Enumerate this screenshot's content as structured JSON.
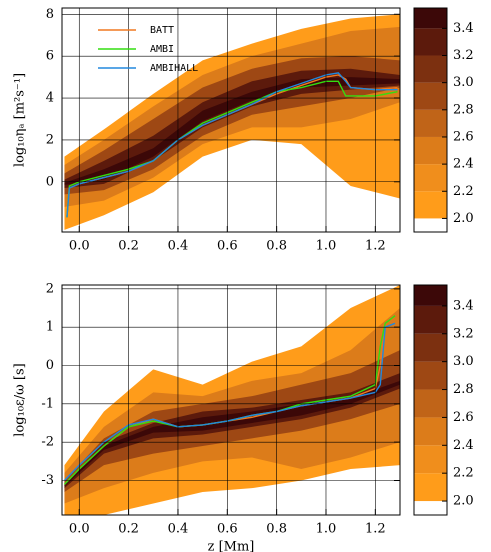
{
  "chart_data": [
    {
      "type": "contour-line",
      "ylabel": "log₁₀ηₐ [m²s⁻¹]",
      "xlim": [
        -0.07,
        1.3
      ],
      "xticks": [
        {
          "value": 0,
          "label": "0.0"
        },
        {
          "value": 0.2,
          "label": "0.2"
        },
        {
          "value": 0.4,
          "label": "0.4"
        },
        {
          "value": 0.6,
          "label": "0.6"
        },
        {
          "value": 0.8,
          "label": "0.8"
        },
        {
          "value": 1.0,
          "label": "1.0"
        },
        {
          "value": 1.2,
          "label": "1.2"
        }
      ],
      "ylim": [
        -2.4,
        8.3
      ],
      "yticks": [
        0,
        2,
        4,
        6,
        8
      ],
      "grid": true,
      "legend": "upper left",
      "contour_x": [
        -0.06,
        0.1,
        0.3,
        0.5,
        0.7,
        0.9,
        1.1,
        1.3
      ],
      "contours": [
        {
          "level": 2.0,
          "lower": [
            -2.3,
            -1.6,
            -0.5,
            1.2,
            2.0,
            1.8,
            -0.2,
            -0.8
          ],
          "upper": [
            1.2,
            2.5,
            4.2,
            5.8,
            6.6,
            7.3,
            7.8,
            8.0
          ]
        },
        {
          "level": 2.4,
          "lower": [
            -1.2,
            -0.9,
            0.2,
            1.8,
            2.6,
            2.6,
            3.0,
            3.8
          ],
          "upper": [
            0.8,
            2.0,
            3.6,
            5.1,
            6.0,
            6.6,
            7.2,
            7.4
          ]
        },
        {
          "level": 2.8,
          "lower": [
            -0.6,
            -0.4,
            0.6,
            2.2,
            3.2,
            3.6,
            4.0,
            4.5
          ],
          "upper": [
            0.4,
            1.5,
            3.0,
            4.5,
            5.4,
            5.9,
            6.0,
            5.8
          ]
        },
        {
          "level": 3.2,
          "lower": [
            -0.3,
            -0.1,
            1.0,
            2.6,
            3.6,
            4.2,
            4.4,
            4.6
          ],
          "upper": [
            0.1,
            1.0,
            2.2,
            3.8,
            4.8,
            5.3,
            5.4,
            5.1
          ]
        },
        {
          "level": 3.4,
          "lower": [
            -0.15,
            0.1,
            1.2,
            2.9,
            3.9,
            4.5,
            4.6,
            4.7
          ],
          "upper": [
            -0.05,
            0.6,
            1.6,
            3.4,
            4.3,
            4.9,
            5.0,
            4.9
          ]
        }
      ],
      "x": [
        -0.05,
        -0.04,
        0,
        0.1,
        0.2,
        0.3,
        0.4,
        0.5,
        0.6,
        0.7,
        0.8,
        0.9,
        1.0,
        1.05,
        1.08,
        1.1,
        1.2,
        1.29
      ],
      "series": [
        {
          "name": "BATT",
          "color": "#f07820",
          "values": [
            -1.7,
            -0.3,
            -0.1,
            0.2,
            0.5,
            1.0,
            2.0,
            2.7,
            3.2,
            3.7,
            4.2,
            4.6,
            5.0,
            5.1,
            4.9,
            4.5,
            4.4,
            4.5
          ]
        },
        {
          "name": "AMBI",
          "color": "#33dd11",
          "values": [
            -1.7,
            -0.2,
            0,
            0.3,
            0.6,
            1.0,
            2.0,
            2.8,
            3.3,
            3.8,
            4.3,
            4.5,
            4.8,
            4.8,
            4.1,
            4.1,
            4.1,
            4.3
          ]
        },
        {
          "name": "AMBIHALL",
          "color": "#2288dd",
          "values": [
            -1.7,
            -0.3,
            -0.1,
            0.2,
            0.5,
            1.0,
            2.0,
            2.7,
            3.2,
            3.7,
            4.3,
            4.7,
            5.1,
            5.2,
            4.8,
            4.5,
            4.4,
            4.4
          ]
        }
      ],
      "colorbar": {
        "bounds": [
          1.9,
          2.0,
          2.2,
          2.4,
          2.6,
          2.8,
          3.0,
          3.2,
          3.4,
          3.55
        ],
        "colors": [
          "#ffffff",
          "#ff9c1a",
          "#f08e1c",
          "#dc7c1a",
          "#c06418",
          "#9e4814",
          "#7c3010",
          "#5c1a0c",
          "#3c0808"
        ],
        "ticks": [
          {
            "value": 2.0,
            "label": "2.0"
          },
          {
            "value": 2.2,
            "label": "2.2"
          },
          {
            "value": 2.4,
            "label": "2.4"
          },
          {
            "value": 2.6,
            "label": "2.6"
          },
          {
            "value": 2.8,
            "label": "2.8"
          },
          {
            "value": 3.0,
            "label": "3.0"
          },
          {
            "value": 3.2,
            "label": "3.2"
          },
          {
            "value": 3.4,
            "label": "3.4"
          }
        ]
      }
    },
    {
      "type": "contour-line",
      "ylabel": "log₁₀ε/ω [s]",
      "xlabel": "z [Mm]",
      "xlim": [
        -0.07,
        1.3
      ],
      "xticks": [
        {
          "value": 0,
          "label": "0.0"
        },
        {
          "value": 0.2,
          "label": "0.2"
        },
        {
          "value": 0.4,
          "label": "0.4"
        },
        {
          "value": 0.6,
          "label": "0.6"
        },
        {
          "value": 0.8,
          "label": "0.8"
        },
        {
          "value": 1.0,
          "label": "1.0"
        },
        {
          "value": 1.2,
          "label": "1.2"
        }
      ],
      "ylim": [
        -3.9,
        2.1
      ],
      "yticks": [
        -3,
        -2,
        -1,
        0,
        1,
        2
      ],
      "grid": true,
      "contour_x": [
        -0.06,
        0.1,
        0.3,
        0.5,
        0.7,
        0.9,
        1.1,
        1.3
      ],
      "contours": [
        {
          "level": 2.0,
          "lower": [
            -3.9,
            -3.9,
            -3.6,
            -3.3,
            -3.2,
            -3.0,
            -2.7,
            -2.6
          ],
          "upper": [
            -2.6,
            -1.2,
            -0.1,
            -0.5,
            0.1,
            0.5,
            1.5,
            2.1
          ]
        },
        {
          "level": 2.4,
          "lower": [
            -3.6,
            -3.2,
            -2.8,
            -2.5,
            -2.4,
            -2.7,
            -2.4,
            -2.0
          ],
          "upper": [
            -2.8,
            -1.6,
            -0.7,
            -0.8,
            -0.4,
            -0.2,
            0.4,
            1.5
          ]
        },
        {
          "level": 2.8,
          "lower": [
            -3.3,
            -2.6,
            -2.3,
            -2.1,
            -1.9,
            -1.7,
            -1.4,
            -1.0
          ],
          "upper": [
            -3.0,
            -1.9,
            -1.2,
            -1.0,
            -0.8,
            -0.5,
            -0.2,
            0.4
          ]
        },
        {
          "level": 3.2,
          "lower": [
            -3.2,
            -2.3,
            -1.9,
            -1.8,
            -1.6,
            -1.4,
            -1.1,
            -0.6
          ],
          "upper": [
            -3.1,
            -2.0,
            -1.5,
            -1.2,
            -1.1,
            -0.9,
            -0.7,
            -0.2
          ]
        },
        {
          "level": 3.4,
          "lower": [
            -3.15,
            -2.2,
            -1.75,
            -1.7,
            -1.5,
            -1.3,
            -1.0,
            -0.5
          ],
          "upper": [
            -3.1,
            -2.1,
            -1.6,
            -1.35,
            -1.2,
            -1.0,
            -0.85,
            -0.4
          ]
        }
      ],
      "x": [
        -0.06,
        0,
        0.1,
        0.2,
        0.3,
        0.4,
        0.5,
        0.6,
        0.7,
        0.8,
        0.9,
        1.0,
        1.1,
        1.2,
        1.22,
        1.24,
        1.28
      ],
      "series": [
        {
          "color": "#f07820",
          "values": [
            -3.1,
            -2.7,
            -2.1,
            -1.6,
            -1.4,
            -1.6,
            -1.55,
            -1.45,
            -1.35,
            -1.2,
            -1.05,
            -0.95,
            -0.85,
            -0.6,
            0.0,
            1.0,
            1.1
          ]
        },
        {
          "color": "#33dd11",
          "values": [
            -3.1,
            -2.7,
            -2.1,
            -1.6,
            -1.45,
            -1.6,
            -1.55,
            -1.45,
            -1.3,
            -1.2,
            -1.0,
            -0.9,
            -0.8,
            -0.5,
            0.5,
            1.1,
            1.3
          ]
        },
        {
          "color": "#2288dd",
          "values": [
            -3.0,
            -2.6,
            -2.0,
            -1.55,
            -1.4,
            -1.6,
            -1.55,
            -1.45,
            -1.3,
            -1.2,
            -1.05,
            -0.95,
            -0.85,
            -0.7,
            -0.5,
            1.0,
            1.1
          ]
        }
      ],
      "colorbar": {
        "bounds": [
          1.9,
          2.0,
          2.2,
          2.4,
          2.6,
          2.8,
          3.0,
          3.2,
          3.4,
          3.55
        ],
        "colors": [
          "#ffffff",
          "#ff9c1a",
          "#f08e1c",
          "#dc7c1a",
          "#c06418",
          "#9e4814",
          "#7c3010",
          "#5c1a0c",
          "#3c0808"
        ],
        "ticks": [
          {
            "value": 2.0,
            "label": "2.0"
          },
          {
            "value": 2.2,
            "label": "2.2"
          },
          {
            "value": 2.4,
            "label": "2.4"
          },
          {
            "value": 2.6,
            "label": "2.6"
          },
          {
            "value": 2.8,
            "label": "2.8"
          },
          {
            "value": 3.0,
            "label": "3.0"
          },
          {
            "value": 3.2,
            "label": "3.2"
          },
          {
            "value": 3.4,
            "label": "3.4"
          }
        ]
      }
    }
  ]
}
